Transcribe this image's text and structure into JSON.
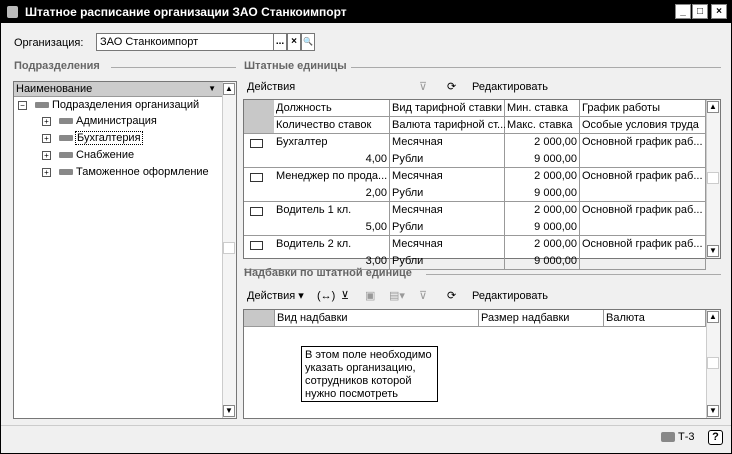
{
  "window": {
    "title": "Штатное расписание организации ЗАО Станкоимпорт",
    "minimize": "_",
    "maximize": "□",
    "close": "×"
  },
  "org": {
    "label": "Организация:",
    "value": "ЗАО Станкоимпорт",
    "select": "...",
    "clear": "×",
    "open": "🔍"
  },
  "tooltip": "В этом поле необходимо указать организацию, сотрудников которой нужно посмотреть",
  "left": {
    "section": "Подразделения",
    "column": "Наименование",
    "tree": [
      {
        "label": "Подразделения организаций",
        "exp": "−",
        "level": 0
      },
      {
        "label": "Администрация",
        "exp": "+",
        "level": 1
      },
      {
        "label": "Бухгалтерия",
        "exp": "+",
        "level": 1,
        "selected": true
      },
      {
        "label": "Снабжение",
        "exp": "+",
        "level": 1
      },
      {
        "label": "Таможенное оформление",
        "exp": "+",
        "level": 1
      }
    ]
  },
  "units": {
    "section": "Штатные единицы",
    "actions": "Действия",
    "edit": "Редактировать",
    "headers": [
      [
        "Должность",
        "Вид тарифной ставки",
        "Мин. ставка",
        "График работы"
      ],
      [
        "Количество ставок",
        "Валюта тарифной ст...",
        "Макс. ставка",
        "Особые условия труда"
      ]
    ],
    "rows": [
      {
        "name": "Бухгалтер",
        "count": "4,00",
        "type": "Месячная",
        "currency": "Рубли",
        "min": "2 000,00",
        "max": "9 000,00",
        "schedule": "Основной график раб..."
      },
      {
        "name": "Менеджер по прода...",
        "count": "2,00",
        "type": "Месячная",
        "currency": "Рубли",
        "min": "2 000,00",
        "max": "9 000,00",
        "schedule": "Основной график раб..."
      },
      {
        "name": "Водитель 1 кл.",
        "count": "5,00",
        "type": "Месячная",
        "currency": "Рубли",
        "min": "2 000,00",
        "max": "9 000,00",
        "schedule": "Основной график раб..."
      },
      {
        "name": "Водитель 2 кл.",
        "count": "3,00",
        "type": "Месячная",
        "currency": "Рубли",
        "min": "2 000,00",
        "max": "9 000,00",
        "schedule": "Основной график раб..."
      }
    ]
  },
  "allowances": {
    "section": "Надбавки по штатной единице",
    "actions": "Действия ▾",
    "edit": "Редактировать",
    "headers": [
      "Вид надбавки",
      "Размер надбавки",
      "Валюта"
    ]
  },
  "status": {
    "form_name": "Т-3",
    "help": "?"
  }
}
